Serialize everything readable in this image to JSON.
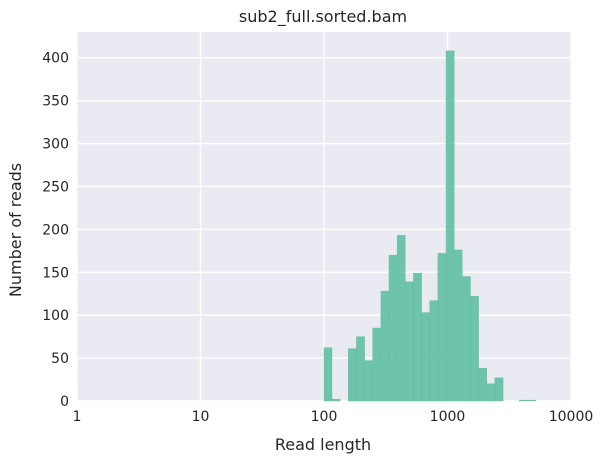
{
  "chart_data": {
    "type": "bar",
    "title": "sub2_full.sorted.bam",
    "xlabel": "Read length",
    "ylabel": "Number of reads",
    "x_scale": "log",
    "xlim": [
      1,
      10000
    ],
    "ylim": [
      0,
      430
    ],
    "grid": true,
    "bar_color": "#66c2a5",
    "background_color": "#eaeaf2",
    "grid_color": "#ffffff",
    "x_ticks": [
      {
        "value": 1,
        "label": "1"
      },
      {
        "value": 10,
        "label": "10"
      },
      {
        "value": 100,
        "label": "100"
      },
      {
        "value": 1000,
        "label": "1000"
      },
      {
        "value": 10000,
        "label": "10000"
      }
    ],
    "y_ticks": [
      {
        "value": 0,
        "label": "0"
      },
      {
        "value": 50,
        "label": "50"
      },
      {
        "value": 100,
        "label": "100"
      },
      {
        "value": 150,
        "label": "150"
      },
      {
        "value": 200,
        "label": "200"
      },
      {
        "value": 250,
        "label": "250"
      },
      {
        "value": 300,
        "label": "300"
      },
      {
        "value": 350,
        "label": "350"
      },
      {
        "value": 400,
        "label": "400"
      }
    ],
    "bins": [
      {
        "x0": 100,
        "x1": 116,
        "count": 62
      },
      {
        "x0": 116,
        "x1": 135,
        "count": 2
      },
      {
        "x0": 135,
        "x1": 157,
        "count": 0
      },
      {
        "x0": 157,
        "x1": 183,
        "count": 61
      },
      {
        "x0": 183,
        "x1": 213,
        "count": 75
      },
      {
        "x0": 213,
        "x1": 248,
        "count": 47
      },
      {
        "x0": 248,
        "x1": 289,
        "count": 85
      },
      {
        "x0": 289,
        "x1": 336,
        "count": 128
      },
      {
        "x0": 336,
        "x1": 391,
        "count": 170
      },
      {
        "x0": 391,
        "x1": 455,
        "count": 193
      },
      {
        "x0": 455,
        "x1": 530,
        "count": 139
      },
      {
        "x0": 530,
        "x1": 617,
        "count": 149
      },
      {
        "x0": 617,
        "x1": 718,
        "count": 103
      },
      {
        "x0": 718,
        "x1": 836,
        "count": 117
      },
      {
        "x0": 836,
        "x1": 973,
        "count": 172
      },
      {
        "x0": 973,
        "x1": 1133,
        "count": 408
      },
      {
        "x0": 1133,
        "x1": 1318,
        "count": 176
      },
      {
        "x0": 1318,
        "x1": 1535,
        "count": 145
      },
      {
        "x0": 1535,
        "x1": 1786,
        "count": 122
      },
      {
        "x0": 1786,
        "x1": 2080,
        "count": 38
      },
      {
        "x0": 2080,
        "x1": 2421,
        "count": 20
      },
      {
        "x0": 2421,
        "x1": 2818,
        "count": 27
      },
      {
        "x0": 2818,
        "x1": 3281,
        "count": 0
      },
      {
        "x0": 3281,
        "x1": 3819,
        "count": 0
      },
      {
        "x0": 3819,
        "x1": 4446,
        "count": 1
      },
      {
        "x0": 4446,
        "x1": 5176,
        "count": 1
      }
    ]
  }
}
